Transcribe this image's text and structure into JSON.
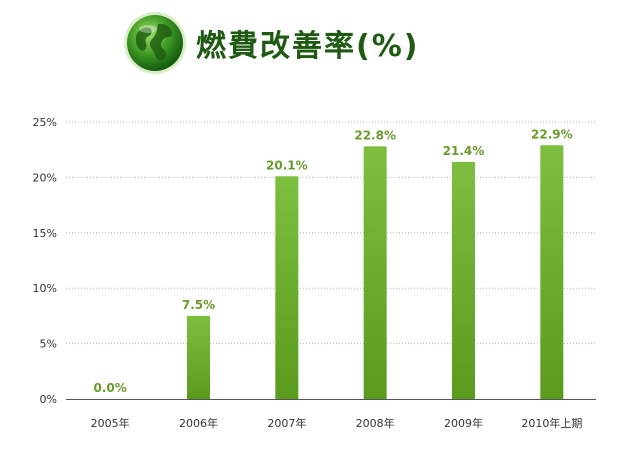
{
  "header": {
    "title": "燃費改善率(%)",
    "icon": "globe-icon"
  },
  "colors": {
    "bar_light": "#7dbf3f",
    "bar_dark": "#5a9a1c",
    "title": "#1f5a12",
    "data_label": "#6a9a2c"
  },
  "chart_data": {
    "type": "bar",
    "categories": [
      "2005年",
      "2006年",
      "2007年",
      "2008年",
      "2009年",
      "2010年上期"
    ],
    "values": [
      0.0,
      7.5,
      20.1,
      22.8,
      21.4,
      22.9
    ],
    "data_labels": [
      "0.0%",
      "7.5%",
      "20.1%",
      "22.8%",
      "21.4%",
      "22.9%"
    ],
    "yticks": [
      "0%",
      "5%",
      "10%",
      "15%",
      "20%",
      "25%"
    ],
    "ylim": [
      0,
      25
    ],
    "grid": "horizontal dotted",
    "legend": "none"
  }
}
